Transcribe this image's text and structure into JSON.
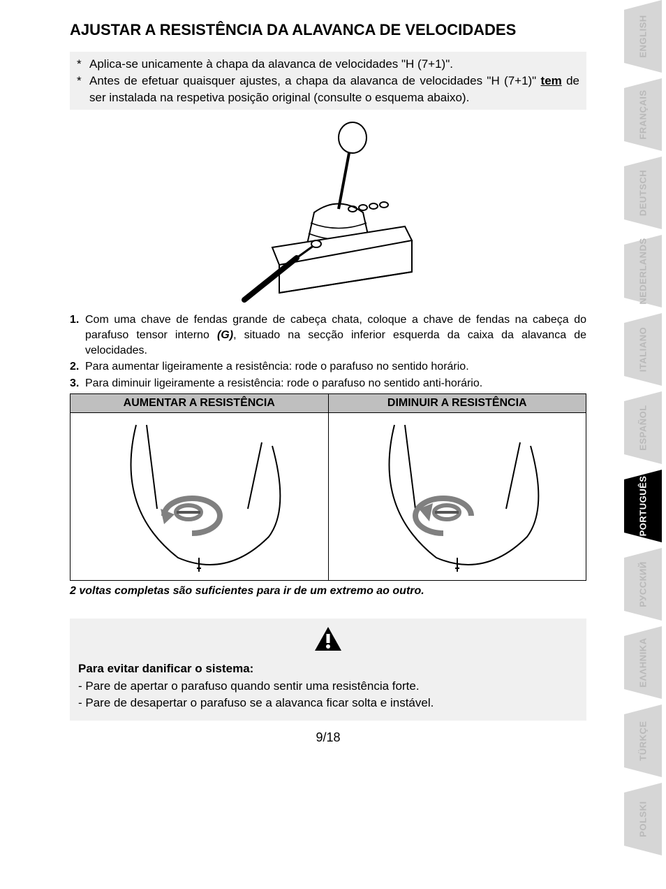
{
  "title": "AJUSTAR A RESISTÊNCIA DA ALAVANCA DE VELOCIDADES",
  "notes": {
    "n1": "Aplica-se unicamente à chapa da alavanca de velocidades \"H (7+1)\".",
    "n2a": "Antes de efetuar quaisquer ajustes, a chapa da alavanca de velocidades \"H (7+1)\" ",
    "n2_tem": "tem",
    "n2b": " de ser instalada na respetiva posição original (consulte o esquema abaixo)."
  },
  "steps": {
    "s1a": "Com uma chave de fendas grande de cabeça chata, coloque a chave de fendas na cabeça do parafuso tensor interno ",
    "s1_g": "(G)",
    "s1b": ", situado na secção inferior esquerda da caixa da alavanca de velocidades.",
    "s2": "Para aumentar ligeiramente a resistência: rode o parafuso no sentido horário.",
    "s3": "Para diminuir ligeiramente a resistência: rode o parafuso no sentido anti-horário."
  },
  "table": {
    "increase": "AUMENTAR A RESISTÊNCIA",
    "decrease": "DIMINUIR A RESISTÊNCIA"
  },
  "turns_note": "2 voltas completas são suficientes para ir de um extremo ao outro.",
  "warning": {
    "title": "Para evitar danificar o sistema:",
    "l1": "- Pare de apertar o parafuso quando sentir uma resistência forte.",
    "l2": "- Pare de desapertar o parafuso se a alavanca ficar solta e instável."
  },
  "page_number": "9/18",
  "languages": [
    {
      "label": "ENGLISH",
      "active": false
    },
    {
      "label": "FRANÇAIS",
      "active": false
    },
    {
      "label": "DEUTSCH",
      "active": false
    },
    {
      "label": "NEDERLANDS",
      "active": false
    },
    {
      "label": "ITALIANO",
      "active": false
    },
    {
      "label": "ESPAÑOL",
      "active": false
    },
    {
      "label": "PORTUGUÊS",
      "active": true
    },
    {
      "label": "РУССКИЙ",
      "active": false
    },
    {
      "label": "ΕΛΛΗΝΙΚΑ",
      "active": false
    },
    {
      "label": "TÜRKÇE",
      "active": false
    },
    {
      "label": "POLSKI",
      "active": false
    }
  ],
  "colors": {
    "tab_inactive": "#d6d6d6",
    "tab_active": "#000000",
    "tab_text_inactive": "#b9b9b9",
    "tab_text_active": "#ffffff",
    "box_bg": "#f0f0f0",
    "th_bg": "#bfbfbf"
  }
}
